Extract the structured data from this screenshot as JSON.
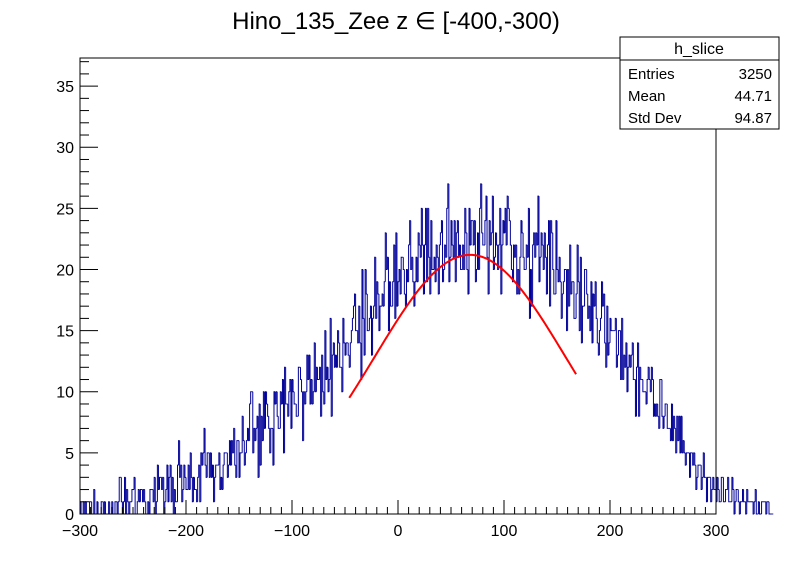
{
  "chart_data": {
    "type": "bar",
    "title": "Hino_135_Zee z  ∈ [-400,-300)",
    "xlabel": "",
    "ylabel": "",
    "xlim": [
      -300,
      300
    ],
    "ylim": [
      0,
      37.3
    ],
    "x_ticks": [
      -300,
      -200,
      -100,
      0,
      100,
      200,
      300
    ],
    "x_tick_labels": [
      "−300",
      "−200",
      "−100",
      "0",
      "100",
      "200",
      "300"
    ],
    "y_ticks": [
      0,
      5,
      10,
      15,
      20,
      25,
      30,
      35
    ],
    "y_tick_labels": [
      "0",
      "5",
      "10",
      "15",
      "20",
      "25",
      "30",
      "35"
    ],
    "grid": false,
    "histogram": {
      "name": "h_slice",
      "color": "#000099",
      "bin_width": 1,
      "values": [
        1,
        0,
        0,
        1,
        0,
        1,
        0,
        0,
        0,
        1,
        1,
        0,
        0,
        2,
        0,
        0,
        1,
        0,
        0,
        0,
        1,
        1,
        0,
        1,
        0,
        0,
        0,
        1,
        0,
        0,
        1,
        0,
        0,
        1,
        1,
        0,
        1,
        3,
        3,
        1,
        0,
        1,
        3,
        0,
        2,
        1,
        0,
        1,
        1,
        2,
        2,
        3,
        0,
        0,
        1,
        2,
        1,
        2,
        2,
        1,
        2,
        1,
        0,
        0,
        1,
        0,
        2,
        2,
        2,
        1,
        3,
        0,
        1,
        4,
        2,
        3,
        3,
        2,
        3,
        0,
        1,
        2,
        4,
        1,
        3,
        4,
        1,
        3,
        0,
        2,
        1,
        1,
        4,
        6,
        3,
        4,
        1,
        2,
        4,
        3,
        2,
        2,
        4,
        2,
        5,
        3,
        1,
        3,
        2,
        2,
        1,
        3,
        4,
        1,
        5,
        4,
        5,
        7,
        4,
        3,
        5,
        5,
        3,
        5,
        3,
        4,
        1,
        3,
        4,
        4,
        4,
        5,
        2,
        3,
        2,
        4,
        5,
        5,
        5,
        3,
        4,
        6,
        4,
        6,
        5,
        7,
        4,
        3,
        6,
        6,
        3,
        5,
        5,
        8,
        6,
        4,
        5,
        6,
        7,
        6,
        9,
        10,
        10,
        5,
        7,
        6,
        7,
        8,
        3,
        9,
        4,
        8,
        6,
        10,
        7,
        10,
        9,
        8,
        7,
        5,
        7,
        7,
        4,
        10,
        9,
        10,
        8,
        7,
        7,
        10,
        9,
        11,
        5,
        12,
        9,
        9,
        8,
        10,
        11,
        7,
        11,
        10,
        9,
        9,
        8,
        8,
        12,
        12,
        11,
        10,
        6,
        10,
        9,
        10,
        13,
        11,
        13,
        9,
        11,
        9,
        10,
        14,
        10,
        12,
        11,
        11,
        12,
        8,
        13,
        10,
        9,
        15,
        11,
        12,
        10,
        11,
        16,
        8,
        13,
        14,
        12,
        13,
        12,
        15,
        14,
        12,
        12,
        10,
        16,
        14,
        13,
        14,
        14,
        13,
        12,
        14,
        15,
        16,
        17,
        18,
        15,
        15,
        14,
        17,
        14,
        11,
        20,
        16,
        13,
        20,
        18,
        15,
        15,
        16,
        17,
        13,
        16,
        17,
        21,
        16,
        19,
        18,
        15,
        17,
        17,
        18,
        17,
        19,
        23,
        20,
        21,
        15,
        19,
        17,
        17,
        19,
        22,
        16,
        23,
        17,
        19,
        20,
        18,
        21,
        21,
        20,
        18,
        17,
        20,
        19,
        22,
        24,
        20,
        21,
        19,
        17,
        19,
        21,
        19,
        23,
        22,
        21,
        25,
        22,
        18,
        22,
        25,
        19,
        25,
        21,
        18,
        24,
        20,
        20,
        21,
        19,
        22,
        21,
        18,
        22,
        23,
        24,
        19,
        20,
        22,
        21,
        25,
        27,
        19,
        21,
        24,
        22,
        21,
        24,
        19,
        23,
        24,
        21,
        22,
        20,
        20,
        22,
        20,
        25,
        23,
        20,
        18,
        25,
        22,
        24,
        24,
        22,
        24,
        19,
        20,
        23,
        20,
        25,
        27,
        23,
        22,
        22,
        24,
        26,
        21,
        18,
        24,
        22,
        23,
        26,
        20,
        21,
        23,
        22,
        20,
        22,
        25,
        18,
        22,
        24,
        23,
        25,
        22,
        26,
        25,
        24,
        22,
        20,
        19,
        22,
        21,
        22,
        18,
        20,
        18,
        21,
        24,
        23,
        21,
        20,
        20,
        22,
        21,
        25,
        16,
        20,
        17,
        22,
        23,
        21,
        23,
        22,
        26,
        19,
        21,
        23,
        22,
        20,
        23,
        21,
        18,
        22,
        24,
        17,
        24,
        23,
        20,
        18,
        18,
        24,
        20,
        19,
        21,
        19,
        16,
        18,
        19,
        20,
        20,
        15,
        20,
        17,
        22,
        18,
        19,
        19,
        16,
        16,
        18,
        22,
        19,
        15,
        21,
        14,
        17,
        17,
        20,
        20,
        18,
        16,
        17,
        15,
        19,
        14,
        18,
        17,
        19,
        16,
        14,
        13,
        15,
        16,
        19,
        17,
        18,
        14,
        12,
        17,
        13,
        14,
        16,
        15,
        15,
        15,
        15,
        16,
        12,
        13,
        15,
        15,
        11,
        16,
        11,
        13,
        12,
        14,
        10,
        12,
        13,
        12,
        13,
        14,
        11,
        11,
        8,
        12,
        14,
        8,
        12,
        11,
        11,
        10,
        10,
        10,
        9,
        11,
        12,
        11,
        10,
        12,
        11,
        8,
        9,
        8,
        9,
        8,
        7,
        11,
        11,
        8,
        7,
        8,
        9,
        9,
        7,
        7,
        7,
        6,
        9,
        6,
        8,
        7,
        5,
        8,
        6,
        8,
        5,
        8,
        5,
        6,
        5,
        4,
        5,
        5,
        5,
        3,
        5,
        5,
        4,
        5,
        4,
        2,
        3,
        4,
        4,
        4,
        2,
        3,
        5,
        3,
        3,
        1,
        3,
        3,
        3,
        1,
        2,
        3,
        2,
        2,
        1,
        3,
        2,
        1,
        1,
        3,
        3,
        1,
        1,
        2,
        2,
        3,
        1,
        1,
        1,
        3,
        2,
        0,
        1,
        2,
        2,
        1,
        0,
        1,
        1,
        2,
        1,
        1,
        0,
        2,
        1,
        1,
        1,
        1,
        1,
        0,
        1,
        2,
        0,
        0,
        1,
        0,
        0,
        1,
        1,
        1,
        1,
        0,
        1,
        1,
        0,
        0,
        0,
        0
      ]
    },
    "fit": {
      "color": "#ff0000",
      "function": "gaus",
      "amplitude": 21.2,
      "mean": 68,
      "sigma": 90,
      "x_range": [
        -46,
        168
      ]
    },
    "stats_box": {
      "title": "h_slice",
      "rows": [
        {
          "label": "Entries",
          "value": "3250"
        },
        {
          "label": "Mean",
          "value": "44.71"
        },
        {
          "label": "Std Dev",
          "value": "94.87"
        }
      ]
    }
  }
}
